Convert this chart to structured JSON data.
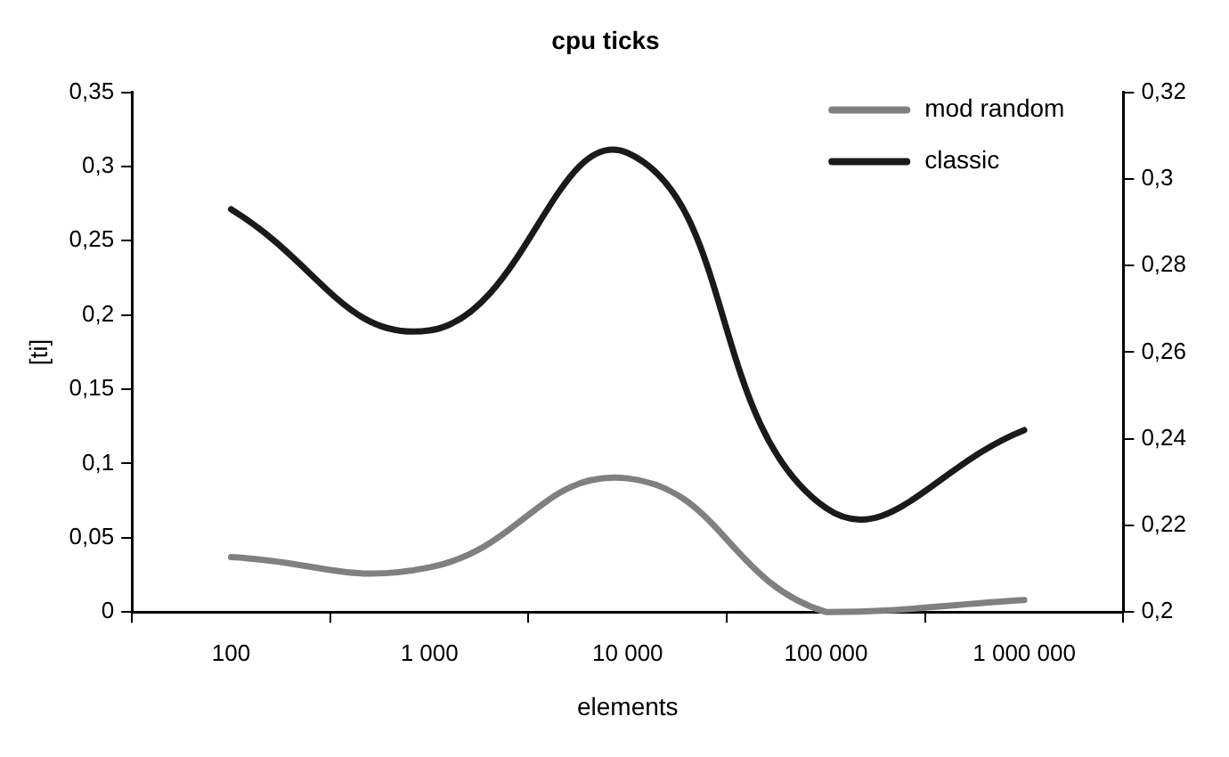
{
  "chart_data": {
    "type": "line",
    "title": "cpu ticks",
    "xlabel": "elements",
    "ylabel": "[ti]",
    "categories": [
      "100",
      "1 000",
      "10 000",
      "100 000",
      "1 000 000"
    ],
    "series": [
      {
        "name": "mod random",
        "color": "#808080",
        "values": [
          0.037,
          0.03,
          0.09,
          0,
          0.008
        ]
      },
      {
        "name": "classic",
        "color": "#1a1a1a",
        "axis": "y2",
        "values": [
          0.293,
          0.265,
          0.306,
          0.224,
          0.242
        ]
      }
    ],
    "ylim": [
      0,
      0.35
    ],
    "yticks": [
      0,
      {
        "value": 0.05,
        "label": "0,05"
      },
      {
        "value": 0.1,
        "label": "0,1"
      },
      {
        "value": 0.15,
        "label": "0,15"
      },
      {
        "value": 0.2,
        "label": "0,2"
      },
      {
        "value": 0.25,
        "label": "0,25"
      },
      {
        "value": 0.3,
        "label": "0,3"
      },
      {
        "value": 0.35,
        "label": "0,35"
      }
    ],
    "y2lim": [
      0.2,
      0.32
    ],
    "y2ticks": [
      {
        "value": 0.2,
        "label": "0,2"
      },
      {
        "value": 0.22,
        "label": "0,22"
      },
      {
        "value": 0.24,
        "label": "0,24"
      },
      {
        "value": 0.26,
        "label": "0,26"
      },
      {
        "value": 0.28,
        "label": "0,28"
      },
      {
        "value": 0.3,
        "label": "0,3"
      },
      {
        "value": 0.32,
        "label": "0,32"
      }
    ],
    "grid": false,
    "legend": "top right",
    "marker": "none",
    "line_style": "solid"
  }
}
